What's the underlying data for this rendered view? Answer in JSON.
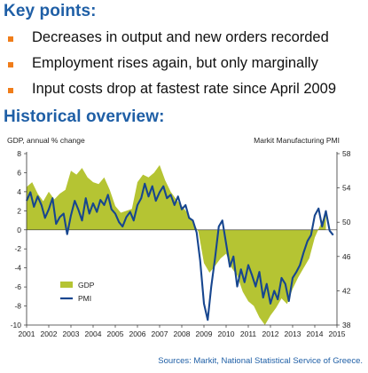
{
  "key_points": {
    "title": "Key points:",
    "items": [
      "Decreases in output and new orders recorded",
      "Employment rises again, but only marginally",
      "Input costs drop at fastest rate since April 2009"
    ]
  },
  "overview": {
    "title": "Historical overview:"
  },
  "source": "Sources: Markit, National Statistical Service of Greece.",
  "colors": {
    "accent": "#1f5fa6",
    "bullet": "#f07d1a",
    "gdp": "#b5c433",
    "pmi": "#17468f"
  },
  "chart_data": {
    "type": "area",
    "left_axis_label": "GDP, annual % change",
    "right_axis_label": "Markit Manufacturing PMI",
    "left_ylim": [
      -10,
      8
    ],
    "left_ticks": [
      8,
      6,
      4,
      2,
      0,
      -2,
      -4,
      -6,
      -8,
      -10
    ],
    "right_ylim": [
      38,
      58
    ],
    "right_ticks": [
      58,
      54,
      50,
      46,
      42,
      38
    ],
    "xlim": [
      2001,
      2015
    ],
    "x_ticks": [
      "2001",
      "2002",
      "2003",
      "2004",
      "2005",
      "2006",
      "2007",
      "2008",
      "2009",
      "2010",
      "2011",
      "2012",
      "2013",
      "2014",
      "2015"
    ],
    "legend_position": "lower-left",
    "series": [
      {
        "name": "GDP",
        "axis": "left",
        "kind": "area",
        "x": [
          2001.0,
          2001.25,
          2001.5,
          2001.75,
          2002.0,
          2002.25,
          2002.5,
          2002.75,
          2003.0,
          2003.25,
          2003.5,
          2003.75,
          2004.0,
          2004.25,
          2004.5,
          2004.75,
          2005.0,
          2005.25,
          2005.5,
          2005.75,
          2006.0,
          2006.25,
          2006.5,
          2006.75,
          2007.0,
          2007.25,
          2007.5,
          2007.75,
          2008.0,
          2008.25,
          2008.5,
          2008.75,
          2009.0,
          2009.25,
          2009.5,
          2009.75,
          2010.0,
          2010.25,
          2010.5,
          2010.75,
          2011.0,
          2011.25,
          2011.5,
          2011.75,
          2012.0,
          2012.25,
          2012.5,
          2012.75,
          2013.0,
          2013.25,
          2013.5,
          2013.75,
          2014.0,
          2014.25,
          2014.5
        ],
        "values": [
          4.5,
          5.0,
          3.8,
          3.0,
          4.0,
          3.2,
          3.8,
          4.2,
          6.2,
          5.8,
          6.5,
          5.5,
          5.0,
          4.8,
          5.5,
          4.2,
          2.5,
          1.8,
          2.0,
          2.2,
          5.0,
          5.8,
          5.5,
          6.0,
          6.8,
          5.2,
          4.0,
          3.2,
          2.5,
          1.8,
          0.8,
          -0.2,
          -3.5,
          -4.5,
          -3.8,
          -3.0,
          -2.5,
          -4.0,
          -4.8,
          -6.5,
          -7.5,
          -8.0,
          -9.2,
          -10.0,
          -9.0,
          -8.2,
          -7.2,
          -7.8,
          -6.2,
          -5.0,
          -4.0,
          -3.0,
          -0.8,
          0.5,
          1.8
        ]
      },
      {
        "name": "PMI",
        "axis": "right",
        "kind": "line",
        "x": [
          2001.0,
          2001.17,
          2001.33,
          2001.5,
          2001.67,
          2001.83,
          2002.0,
          2002.17,
          2002.33,
          2002.5,
          2002.67,
          2002.83,
          2003.0,
          2003.17,
          2003.33,
          2003.5,
          2003.67,
          2003.83,
          2004.0,
          2004.17,
          2004.33,
          2004.5,
          2004.67,
          2004.83,
          2005.0,
          2005.17,
          2005.33,
          2005.5,
          2005.67,
          2005.83,
          2006.0,
          2006.17,
          2006.33,
          2006.5,
          2006.67,
          2006.83,
          2007.0,
          2007.17,
          2007.33,
          2007.5,
          2007.67,
          2007.83,
          2008.0,
          2008.17,
          2008.33,
          2008.5,
          2008.67,
          2008.83,
          2009.0,
          2009.17,
          2009.33,
          2009.5,
          2009.67,
          2009.83,
          2010.0,
          2010.17,
          2010.33,
          2010.5,
          2010.67,
          2010.83,
          2011.0,
          2011.17,
          2011.33,
          2011.5,
          2011.67,
          2011.83,
          2012.0,
          2012.17,
          2012.33,
          2012.5,
          2012.67,
          2012.83,
          2013.0,
          2013.17,
          2013.33,
          2013.5,
          2013.67,
          2013.83,
          2014.0,
          2014.17,
          2014.33,
          2014.5,
          2014.67,
          2014.83
        ],
        "values": [
          52.5,
          53.5,
          51.8,
          53.0,
          52.0,
          50.5,
          51.5,
          52.8,
          49.8,
          50.6,
          51.0,
          48.6,
          50.8,
          52.5,
          51.5,
          50.2,
          52.8,
          51.0,
          52.2,
          51.2,
          52.6,
          52.0,
          53.2,
          51.5,
          51.0,
          50.0,
          49.5,
          50.6,
          51.2,
          50.2,
          52.0,
          52.8,
          54.5,
          53.0,
          54.2,
          52.5,
          53.5,
          54.2,
          52.8,
          53.2,
          52.0,
          53.0,
          51.5,
          52.0,
          50.5,
          50.2,
          48.8,
          45.5,
          40.5,
          38.6,
          42.5,
          45.8,
          49.5,
          50.2,
          47.5,
          44.8,
          46.0,
          42.5,
          44.5,
          43.0,
          45.0,
          43.8,
          42.5,
          44.2,
          41.2,
          42.8,
          40.5,
          42.0,
          41.0,
          43.5,
          42.8,
          40.8,
          43.5,
          44.2,
          45.0,
          46.5,
          47.8,
          48.5,
          50.8,
          51.6,
          49.5,
          51.3,
          49.0,
          48.5
        ]
      }
    ]
  }
}
